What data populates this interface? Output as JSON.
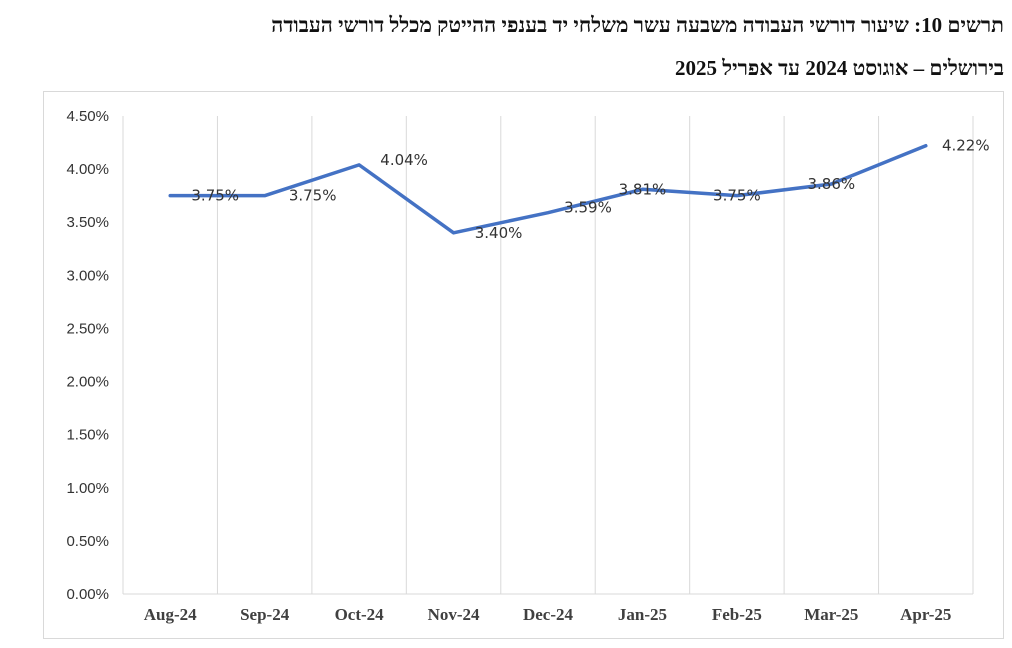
{
  "title": {
    "line1": "תרשים 10: שיעור דורשי העבודה משבעה עשר משלחי יד בענפי ההייטק מכלל דורשי העבודה",
    "line2": "בירושלים – אוגוסט 2024 עד אפריל 2025"
  },
  "chart_data": {
    "type": "line",
    "categories": [
      "Aug-24",
      "Sep-24",
      "Oct-24",
      "Nov-24",
      "Dec-24",
      "Jan-25",
      "Feb-25",
      "Mar-25",
      "Apr-25"
    ],
    "series": [
      {
        "values": [
          3.75,
          3.75,
          4.04,
          3.4,
          3.59,
          3.81,
          3.75,
          3.86,
          4.22
        ],
        "labels": [
          "3.75%",
          "3.75%",
          "4.04%",
          "3.40%",
          "3.59%",
          "3.81%",
          "3.75%",
          "3.86%",
          "4.22%"
        ],
        "color": "#4472C4"
      }
    ],
    "y_ticks": [
      "0.00%",
      "0.50%",
      "1.00%",
      "1.50%",
      "2.00%",
      "2.50%",
      "3.00%",
      "3.50%",
      "4.00%",
      "4.50%"
    ],
    "ylim": [
      0,
      4.5
    ],
    "grid": "vertical",
    "gridline_color": "#d9d9d9"
  }
}
